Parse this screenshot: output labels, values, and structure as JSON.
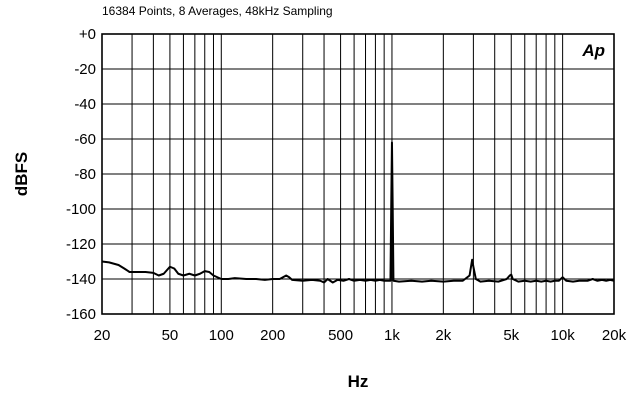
{
  "chart_data": {
    "type": "line",
    "subtitle": "16384 Points, 8 Averages, 48kHz Sampling",
    "xlabel": "Hz",
    "ylabel": "dBFS",
    "logo": "Ap",
    "x_scale": "log",
    "xlim": [
      20,
      20000
    ],
    "ylim": [
      -160,
      0
    ],
    "grid": true,
    "x_ticks": [
      {
        "value": 20,
        "label": "20"
      },
      {
        "value": 50,
        "label": "50"
      },
      {
        "value": 100,
        "label": "100"
      },
      {
        "value": 200,
        "label": "200"
      },
      {
        "value": 500,
        "label": "500"
      },
      {
        "value": 1000,
        "label": "1k"
      },
      {
        "value": 2000,
        "label": "2k"
      },
      {
        "value": 5000,
        "label": "5k"
      },
      {
        "value": 10000,
        "label": "10k"
      },
      {
        "value": 20000,
        "label": "20k"
      }
    ],
    "y_ticks": [
      {
        "value": 0,
        "label": "+0"
      },
      {
        "value": -20,
        "label": "-20"
      },
      {
        "value": -40,
        "label": "-40"
      },
      {
        "value": -60,
        "label": "-60"
      },
      {
        "value": -80,
        "label": "-80"
      },
      {
        "value": -100,
        "label": "-100"
      },
      {
        "value": -120,
        "label": "-120"
      },
      {
        "value": -140,
        "label": "-140"
      },
      {
        "value": -160,
        "label": "-160"
      }
    ],
    "series": [
      {
        "color": "#000000",
        "points": [
          [
            20,
            -130
          ],
          [
            22,
            -130.5
          ],
          [
            25,
            -132
          ],
          [
            27,
            -134
          ],
          [
            29,
            -136
          ],
          [
            32,
            -136
          ],
          [
            36,
            -136
          ],
          [
            40,
            -136.5
          ],
          [
            43,
            -138
          ],
          [
            46,
            -137
          ],
          [
            50,
            -133
          ],
          [
            53,
            -134
          ],
          [
            56,
            -137
          ],
          [
            60,
            -138
          ],
          [
            65,
            -137
          ],
          [
            70,
            -138
          ],
          [
            75,
            -137
          ],
          [
            80,
            -135.5
          ],
          [
            85,
            -136
          ],
          [
            90,
            -138
          ],
          [
            100,
            -140
          ],
          [
            110,
            -140
          ],
          [
            120,
            -139.5
          ],
          [
            140,
            -140
          ],
          [
            160,
            -140
          ],
          [
            180,
            -140.5
          ],
          [
            200,
            -140
          ],
          [
            220,
            -140
          ],
          [
            240,
            -138
          ],
          [
            250,
            -139
          ],
          [
            260,
            -140.5
          ],
          [
            300,
            -141
          ],
          [
            340,
            -140.5
          ],
          [
            380,
            -141
          ],
          [
            400,
            -142
          ],
          [
            420,
            -140
          ],
          [
            450,
            -142
          ],
          [
            480,
            -140.5
          ],
          [
            520,
            -141
          ],
          [
            560,
            -140
          ],
          [
            600,
            -141
          ],
          [
            650,
            -140.5
          ],
          [
            700,
            -141
          ],
          [
            750,
            -140.5
          ],
          [
            800,
            -141
          ],
          [
            850,
            -140.5
          ],
          [
            900,
            -141
          ],
          [
            950,
            -141
          ],
          [
            980,
            -141
          ],
          [
            990,
            -100
          ],
          [
            1000,
            -62
          ],
          [
            1010,
            -100
          ],
          [
            1020,
            -141
          ],
          [
            1100,
            -141.5
          ],
          [
            1300,
            -141
          ],
          [
            1500,
            -141.5
          ],
          [
            1700,
            -141
          ],
          [
            2000,
            -141.5
          ],
          [
            2300,
            -141
          ],
          [
            2600,
            -141
          ],
          [
            2850,
            -138
          ],
          [
            2950,
            -129
          ],
          [
            3000,
            -133
          ],
          [
            3100,
            -140
          ],
          [
            3300,
            -141.5
          ],
          [
            3700,
            -141
          ],
          [
            4200,
            -141.5
          ],
          [
            4700,
            -140
          ],
          [
            4900,
            -138
          ],
          [
            5000,
            -137.5
          ],
          [
            5100,
            -140
          ],
          [
            5500,
            -141.5
          ],
          [
            6000,
            -141
          ],
          [
            6500,
            -141.5
          ],
          [
            7000,
            -141
          ],
          [
            7500,
            -141.5
          ],
          [
            8000,
            -141
          ],
          [
            8500,
            -141.5
          ],
          [
            9000,
            -141
          ],
          [
            9500,
            -141
          ],
          [
            10000,
            -139
          ],
          [
            10500,
            -141
          ],
          [
            11500,
            -141.5
          ],
          [
            12500,
            -141
          ],
          [
            14000,
            -141
          ],
          [
            15000,
            -140
          ],
          [
            16000,
            -141
          ],
          [
            17000,
            -140.5
          ],
          [
            18000,
            -141
          ],
          [
            19000,
            -140.5
          ],
          [
            20000,
            -141
          ]
        ]
      }
    ]
  }
}
